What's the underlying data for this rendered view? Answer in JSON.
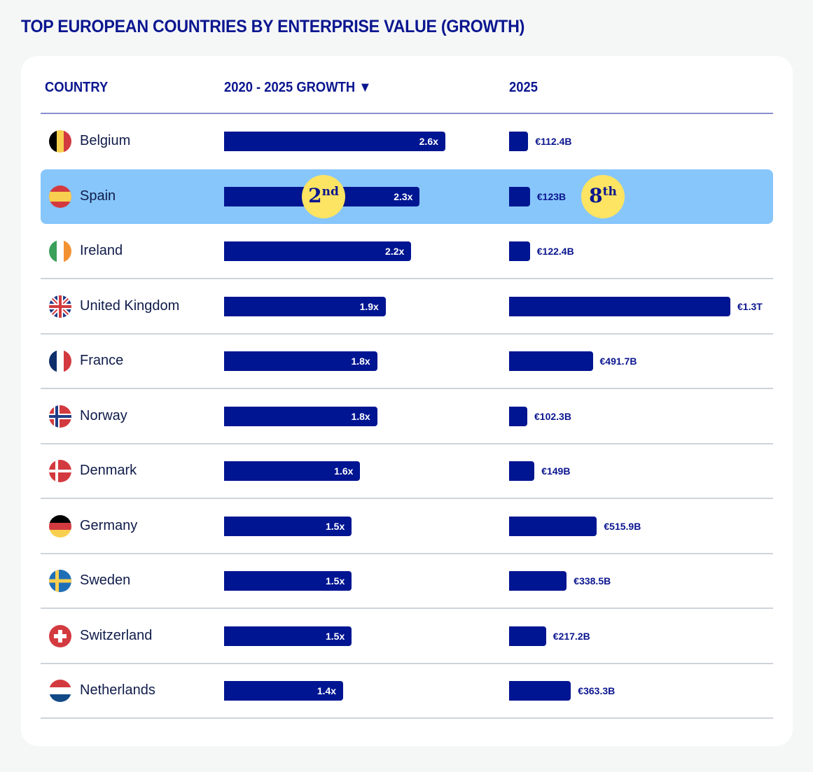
{
  "title": "TOP EUROPEAN COUNTRIES BY ENTERPRISE VALUE (GROWTH)",
  "headers": {
    "country": "COUNTRY",
    "growth": "2020 - 2025 GROWTH ▼",
    "value": "2025"
  },
  "colors": {
    "bar": "#001591",
    "highlight_row": "#87c6fb",
    "badge": "#fde462",
    "text_accent": "#0b168f"
  },
  "highlight": {
    "country": "Spain",
    "growth_rank": {
      "num": "2",
      "suffix": "nd"
    },
    "value_rank": {
      "num": "8",
      "suffix": "th"
    }
  },
  "chart_data": {
    "type": "table",
    "title": "TOP EUROPEAN COUNTRIES BY ENTERPRISE VALUE (GROWTH)",
    "columns": [
      "COUNTRY",
      "2020 - 2025 GROWTH",
      "2025"
    ],
    "sort": {
      "column": "2020 - 2025 GROWTH",
      "order": "descending"
    },
    "growth_unit": "x",
    "value_unit": "EUR billions",
    "rows": [
      {
        "country": "Belgium",
        "flag": "belgium-flag-icon",
        "growth": 2.6,
        "growth_label": "2.6x",
        "value_2025": 112.4,
        "value_label": "€112.4B"
      },
      {
        "country": "Spain",
        "flag": "spain-flag-icon",
        "growth": 2.3,
        "growth_label": "2.3x",
        "value_2025": 123,
        "value_label": "€123B",
        "highlighted": true
      },
      {
        "country": "Ireland",
        "flag": "ireland-flag-icon",
        "growth": 2.2,
        "growth_label": "2.2x",
        "value_2025": 122.4,
        "value_label": "€122.4B"
      },
      {
        "country": "United Kingdom",
        "flag": "uk-flag-icon",
        "growth": 1.9,
        "growth_label": "1.9x",
        "value_2025": 1300,
        "value_label": "€1.3T"
      },
      {
        "country": "France",
        "flag": "france-flag-icon",
        "growth": 1.8,
        "growth_label": "1.8x",
        "value_2025": 491.7,
        "value_label": "€491.7B"
      },
      {
        "country": "Norway",
        "flag": "norway-flag-icon",
        "growth": 1.8,
        "growth_label": "1.8x",
        "value_2025": 102.3,
        "value_label": "€102.3B"
      },
      {
        "country": "Denmark",
        "flag": "denmark-flag-icon",
        "growth": 1.6,
        "growth_label": "1.6x",
        "value_2025": 149,
        "value_label": "€149B"
      },
      {
        "country": "Germany",
        "flag": "germany-flag-icon",
        "growth": 1.5,
        "growth_label": "1.5x",
        "value_2025": 515.9,
        "value_label": "€515.9B"
      },
      {
        "country": "Sweden",
        "flag": "sweden-flag-icon",
        "growth": 1.5,
        "growth_label": "1.5x",
        "value_2025": 338.5,
        "value_label": "€338.5B"
      },
      {
        "country": "Switzerland",
        "flag": "switzerland-flag-icon",
        "growth": 1.5,
        "growth_label": "1.5x",
        "value_2025": 217.2,
        "value_label": "€217.2B"
      },
      {
        "country": "Netherlands",
        "flag": "netherlands-flag-icon",
        "growth": 1.4,
        "growth_label": "1.4x",
        "value_2025": 363.3,
        "value_label": "€363.3B"
      }
    ]
  }
}
